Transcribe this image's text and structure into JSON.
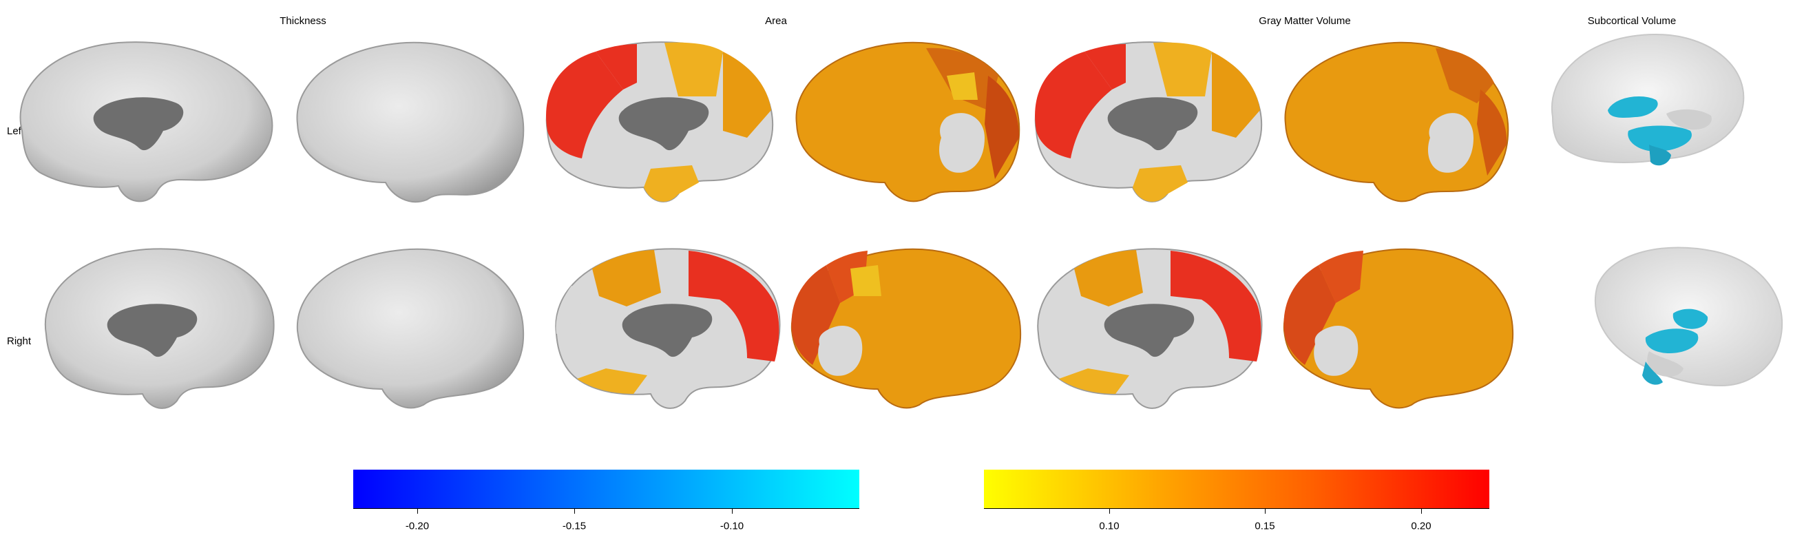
{
  "columns": {
    "thickness": "Thickness",
    "area": "Area",
    "gray_matter_volume": "Gray Matter Volume",
    "subcortical_volume": "Subcortical Volume"
  },
  "rows": {
    "left": "Left",
    "right": "Right"
  },
  "colors": {
    "neutral_cortex": "#d9d9d9",
    "neutral_shade": "#8a8a8a",
    "medial_wall": "#6e6e6e",
    "red": "#e83020",
    "orange": "#e89a10",
    "dark_orange": "#d46a10",
    "amber": "#efb020",
    "cyan": "#22b4d4"
  },
  "colorbar_negative": {
    "range": [
      -0.22,
      -0.06
    ],
    "colors": [
      "#0000ff",
      "#0080ff",
      "#00ffff"
    ],
    "ticks": [
      "-0.20",
      "-0.15",
      "-0.10"
    ]
  },
  "colorbar_positive": {
    "range": [
      0.06,
      0.22
    ],
    "colors": [
      "#ffff00",
      "#ffa500",
      "#ff6000",
      "#ff0000"
    ],
    "ticks": [
      "0.10",
      "0.15",
      "0.20"
    ]
  }
}
